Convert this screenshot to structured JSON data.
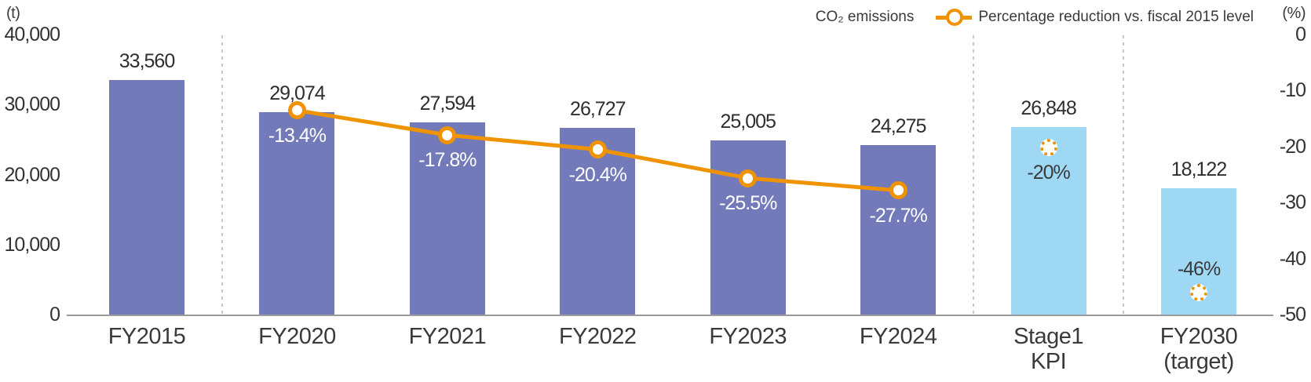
{
  "legend": {
    "bar_label": "CO₂ emissions",
    "line_label": "Percentage reduction vs. fiscal 2015 level"
  },
  "colors": {
    "bar_actual": "#737ABA",
    "bar_target": "#9ED8F5",
    "line": "#F09300",
    "pct_label_on_actual": "#FFFFFF",
    "pct_label_on_target": "#3A3A3A",
    "text": "#333333",
    "axis_line": "#9B9B9B",
    "separator": "#C6C6C6"
  },
  "chart_data": {
    "type": "bar+line",
    "title": "",
    "categories": [
      [
        "FY2015"
      ],
      [
        "FY2020"
      ],
      [
        "FY2021"
      ],
      [
        "FY2022"
      ],
      [
        "FY2023"
      ],
      [
        "FY2024"
      ],
      [
        "Stage1",
        "KPI"
      ],
      [
        "FY2030",
        "(target)"
      ]
    ],
    "left_axis": {
      "unit": "(t)",
      "ticks": [
        "40,000",
        "30,000",
        "20,000",
        "10,000",
        "0"
      ],
      "min": 0,
      "max": 40000
    },
    "right_axis": {
      "unit": "(%)",
      "ticks": [
        "0",
        "-10",
        "-20",
        "-30",
        "-40",
        "-50"
      ],
      "min": -50,
      "max": 0
    },
    "grid": "off",
    "legend_position": "top-right",
    "series": [
      {
        "name": "CO₂ emissions",
        "type": "bar",
        "values": [
          33560,
          29074,
          27594,
          26727,
          25005,
          24275,
          26848,
          18122
        ],
        "value_labels": [
          "33,560",
          "29,074",
          "27,594",
          "26,727",
          "25,005",
          "24,275",
          "26,848",
          "18,122"
        ],
        "bar_kinds": [
          "actual",
          "actual",
          "actual",
          "actual",
          "actual",
          "actual",
          "target",
          "target"
        ]
      },
      {
        "name": "Percentage reduction vs. fiscal 2015 level",
        "type": "line",
        "values": [
          null,
          -13.4,
          -17.8,
          -20.4,
          -25.5,
          -27.7,
          -20,
          -46
        ],
        "point_labels": [
          null,
          "-13.4%",
          "-17.8%",
          "-20.4%",
          "-25.5%",
          "-27.7%",
          "-20%",
          "-46%"
        ],
        "connected": [
          false,
          true,
          true,
          true,
          true,
          true,
          false,
          false
        ],
        "marker_styles": [
          null,
          "solid",
          "solid",
          "solid",
          "solid",
          "solid",
          "dashed",
          "dashed"
        ],
        "label_positions": [
          null,
          "below",
          "below",
          "below",
          "below",
          "below",
          "below",
          "above"
        ]
      }
    ],
    "separators_after_category_index": [
      0,
      5,
      6
    ]
  }
}
